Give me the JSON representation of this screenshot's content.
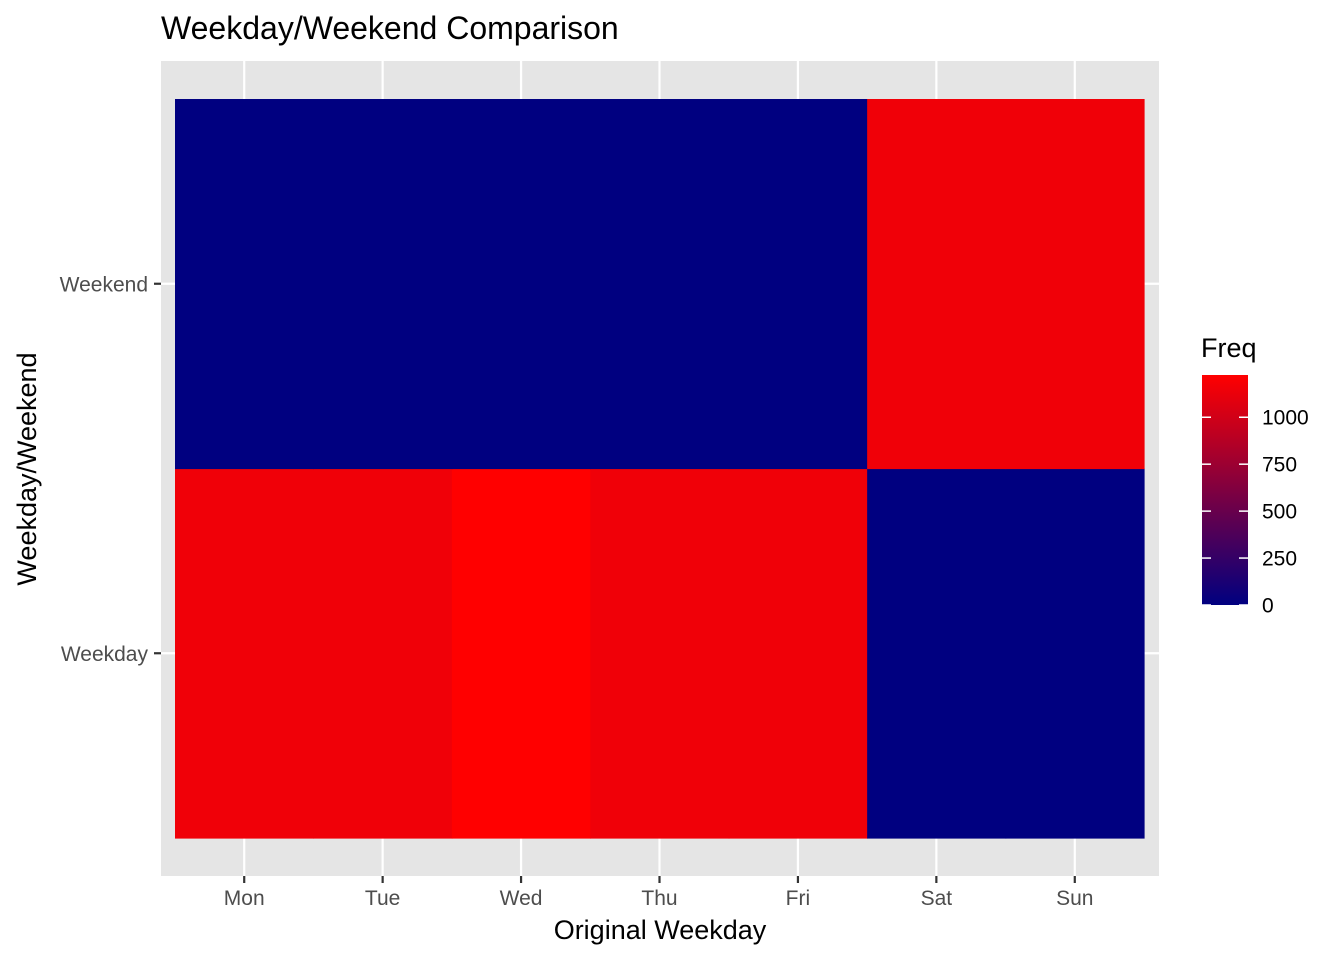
{
  "chart_data": {
    "type": "heatmap",
    "title": "Weekday/Weekend Comparison",
    "xlabel": "Original Weekday",
    "ylabel": "Weekday/Weekend",
    "x_categories": [
      "Mon",
      "Tue",
      "Wed",
      "Thu",
      "Fri",
      "Sat",
      "Sun"
    ],
    "y_categories": [
      "Weekday",
      "Weekend"
    ],
    "values": [
      [
        1152,
        1152,
        1225,
        1152,
        1152,
        0,
        0
      ],
      [
        0,
        0,
        0,
        0,
        0,
        1152,
        1152
      ]
    ],
    "legend": {
      "title": "Freq",
      "ticks": [
        0,
        250,
        500,
        750,
        1000
      ],
      "ticks_text": [
        "0",
        "250",
        "500",
        "750",
        "1000"
      ],
      "min": 0,
      "max": 1225,
      "low_color": "#000080",
      "high_color": "#ff0000",
      "position": "right"
    },
    "panel_background": "#e5e5e5",
    "grid": true
  }
}
